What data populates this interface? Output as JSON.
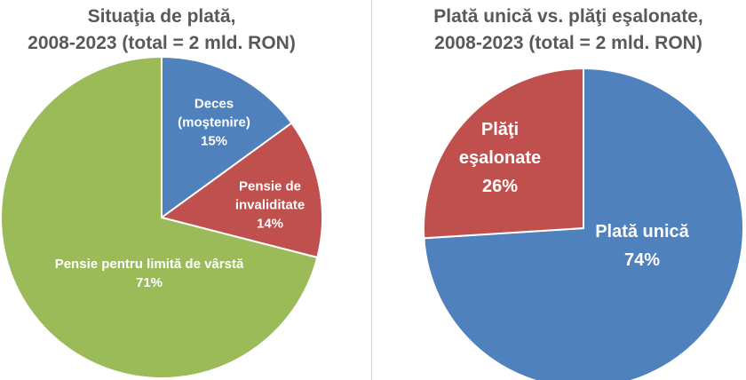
{
  "chart_data": [
    {
      "type": "pie",
      "title_line1": "Situaţia de plată,",
      "title_line2": "2008-2023 (total = 2 mld. RON)",
      "slices": [
        {
          "label_line1": "Deces",
          "label_line2": "(moştenire)",
          "pct_label": "15%",
          "value": 15,
          "color": "#4f81bd"
        },
        {
          "label_line1": "Pensie de",
          "label_line2": "invaliditate",
          "pct_label": "14%",
          "value": 14,
          "color": "#c0504d"
        },
        {
          "label_line1": "Pensie pentru limită de vârstă",
          "label_line2": "",
          "pct_label": "71%",
          "value": 71,
          "color": "#9bbb59"
        }
      ],
      "start": "12 o'clock, clockwise"
    },
    {
      "type": "pie",
      "title_line1": "Plată unică vs. plăţi eşalonate,",
      "title_line2": "2008-2023 (total = 2 mld. RON)",
      "slices": [
        {
          "label_line1": "Plată unică",
          "label_line2": "",
          "pct_label": "74%",
          "value": 74,
          "color": "#4f81bd"
        },
        {
          "label_line1": "Plăţi",
          "label_line2": "eşalonate",
          "pct_label": "26%",
          "value": 26,
          "color": "#c0504d"
        }
      ],
      "start": "12 o'clock, clockwise"
    }
  ]
}
